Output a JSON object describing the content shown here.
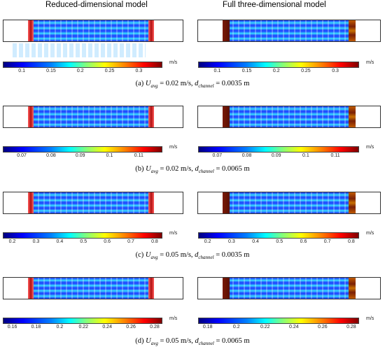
{
  "header": {
    "left_title": "Reduced-dimensional model",
    "right_title": "Full three-dimensional model"
  },
  "colorbar_unit": "m/s",
  "panels": [
    {
      "ticks": [
        "0.1",
        "0.15",
        "0.2",
        "0.25",
        "0.3"
      ],
      "caption": {
        "label": "(a)",
        "u_sym": "U",
        "u_sub": "avg",
        "u_val": "= 0.02 m/s,",
        "d_sym": "d",
        "d_sub": "channel",
        "d_val": "= 0.0035 m"
      }
    },
    {
      "ticks": [
        "0.07",
        "0.08",
        "0.09",
        "0.1",
        "0.11"
      ],
      "caption": {
        "label": "(b)",
        "u_sym": "U",
        "u_sub": "avg",
        "u_val": "= 0.02 m/s,",
        "d_sym": "d",
        "d_sub": "channel",
        "d_val": "= 0.0065 m"
      }
    },
    {
      "ticks": [
        "0.2",
        "0.3",
        "0.4",
        "0.5",
        "0.6",
        "0.7",
        "0.8"
      ],
      "caption": {
        "label": "(c)",
        "u_sym": "U",
        "u_sub": "avg",
        "u_val": "= 0.05 m/s,",
        "d_sym": "d",
        "d_sub": "channel",
        "d_val": "= 0.0035 m"
      }
    },
    {
      "ticks": [
        "0.16",
        "0.18",
        "0.2",
        "0.22",
        "0.24",
        "0.26",
        "0.28"
      ],
      "ticks_right": [
        "0.18",
        "0.2",
        "0.22",
        "0.24",
        "0.26",
        "0.28"
      ],
      "caption": {
        "label": "(d)",
        "u_sym": "U",
        "u_sub": "avg",
        "u_val": "= 0.05 m/s,",
        "d_sym": "d",
        "d_sub": "channel",
        "d_val": "= 0.0065 m"
      }
    }
  ]
}
